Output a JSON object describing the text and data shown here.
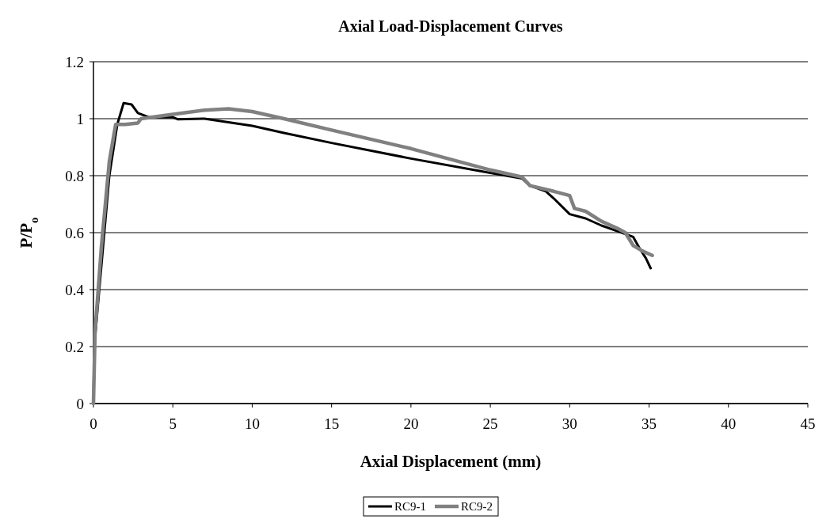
{
  "chart_data": {
    "type": "line",
    "title": "Axial Load-Displacement Curves",
    "xlabel": "Axial Displacement (mm)",
    "ylabel": "P/P$_{o}$",
    "xlim": [
      0,
      45
    ],
    "xticks": [
      0,
      5,
      10,
      15,
      20,
      25,
      30,
      35,
      40,
      45
    ],
    "ylim": [
      0,
      1.2
    ],
    "yticks": [
      0,
      0.2,
      0.4,
      0.6,
      0.8,
      1,
      1.2
    ],
    "grid": "y",
    "legend": "bottom",
    "marker": "none",
    "series": [
      {
        "name": "RC9-1",
        "color": "#000000",
        "x": [
          0,
          0.05,
          0.5,
          1.0,
          1.5,
          1.9,
          2.4,
          2.8,
          3.5,
          5,
          5.3,
          7,
          10,
          12,
          15,
          20,
          25,
          27,
          27.5,
          28.5,
          29,
          30,
          31,
          32,
          33,
          34,
          34.4,
          34.8,
          35.1
        ],
        "values": [
          0,
          0.2,
          null,
          0.8,
          0.98,
          1.055,
          1.05,
          1.02,
          1.005,
          1.005,
          0.998,
          1.0,
          0.975,
          0.95,
          0.915,
          0.86,
          0.81,
          0.79,
          0.765,
          0.745,
          0.72,
          0.665,
          0.65,
          0.625,
          0.605,
          0.585,
          0.545,
          0.51,
          0.475
        ]
      },
      {
        "name": "RC9-2",
        "color": "#808080",
        "x": [
          0,
          0.1,
          0.5,
          1.0,
          1.4,
          2,
          2.8,
          3,
          5,
          7,
          8.5,
          10,
          12,
          15,
          20,
          25,
          27,
          27.5,
          29,
          30,
          30.3,
          31,
          32,
          33,
          33.5,
          34,
          34.6,
          35.2
        ],
        "values": [
          0,
          0.25,
          0.55,
          0.85,
          0.98,
          0.98,
          0.985,
          1.0,
          1.015,
          1.03,
          1.035,
          1.025,
          1.0,
          0.96,
          0.895,
          0.82,
          0.795,
          0.765,
          0.745,
          0.73,
          0.685,
          0.675,
          0.64,
          0.615,
          0.6,
          0.555,
          0.535,
          0.52
        ]
      }
    ]
  }
}
